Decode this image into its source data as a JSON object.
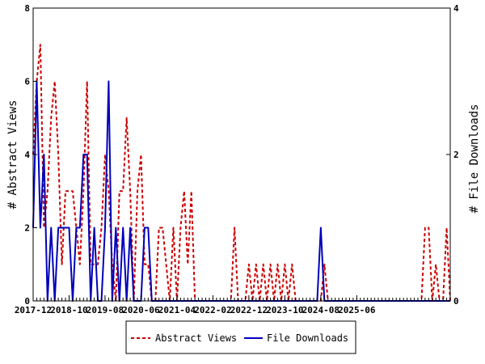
{
  "chart_data": {
    "type": "line",
    "xlabel": "",
    "ylabel": "# Abstract Views",
    "y2label": "# File Downloads",
    "x_tick_labels": [
      "2017-12",
      "2018-10",
      "2019-08",
      "2020-06",
      "2021-04",
      "2022-02",
      "2022-12",
      "2023-10",
      "2024-08",
      "2025-06"
    ],
    "ylim": [
      0,
      8
    ],
    "y_ticks": [
      0,
      2,
      4,
      6,
      8
    ],
    "y2lim": [
      0,
      4
    ],
    "y2_ticks": [
      0,
      2,
      4
    ],
    "months_per_tick": 10,
    "legend_position": "bottom",
    "series": [
      {
        "name": "Abstract Views",
        "axis": "left",
        "color": "#cc0000",
        "style": "dashed",
        "values": [
          4,
          6,
          7,
          2,
          3,
          5,
          6,
          4,
          1,
          3,
          3,
          3,
          2,
          1,
          3,
          6,
          1,
          1,
          1,
          2,
          4,
          3,
          1,
          0,
          3,
          3,
          5,
          3,
          0,
          3,
          4,
          1,
          1,
          0,
          0,
          2,
          2,
          1,
          0,
          2,
          0,
          2,
          3,
          1,
          3,
          0,
          0,
          0,
          0,
          0,
          0,
          0,
          0,
          0,
          0,
          0,
          2,
          0,
          0,
          0,
          1,
          0,
          1,
          0,
          1,
          0,
          1,
          0,
          1,
          0,
          1,
          0,
          1,
          0,
          0,
          0,
          0,
          0,
          0,
          0,
          0,
          1,
          0,
          0,
          0,
          0,
          0,
          0,
          0,
          0,
          0,
          0,
          0,
          0,
          0,
          0,
          0,
          0,
          0,
          0,
          0,
          0,
          0,
          0,
          0,
          0,
          0,
          0,
          0,
          2,
          2,
          0,
          1,
          0,
          0,
          2,
          0
        ]
      },
      {
        "name": "File Downloads",
        "axis": "right",
        "color": "#0000bb",
        "style": "solid",
        "values": [
          1,
          3,
          1,
          2,
          0,
          1,
          0,
          1,
          1,
          1,
          1,
          0,
          1,
          1,
          2,
          2,
          0,
          1,
          0,
          0,
          1,
          3,
          0,
          1,
          0,
          1,
          0,
          1,
          0,
          0,
          0,
          1,
          1,
          0,
          0,
          0,
          0,
          0,
          0,
          0,
          0,
          0,
          0,
          0,
          0,
          0,
          0,
          0,
          0,
          0,
          0,
          0,
          0,
          0,
          0,
          0,
          0,
          0,
          0,
          0,
          0,
          0,
          0,
          0,
          0,
          0,
          0,
          0,
          0,
          0,
          0,
          0,
          0,
          0,
          0,
          0,
          0,
          0,
          0,
          0,
          1,
          0,
          0,
          0,
          0,
          0,
          0,
          0,
          0,
          0,
          0,
          0,
          0,
          0,
          0,
          0,
          0,
          0,
          0,
          0,
          0,
          0,
          0,
          0,
          0,
          0,
          0,
          0,
          0,
          0,
          0,
          0,
          0,
          0,
          0,
          0,
          0
        ]
      }
    ]
  }
}
